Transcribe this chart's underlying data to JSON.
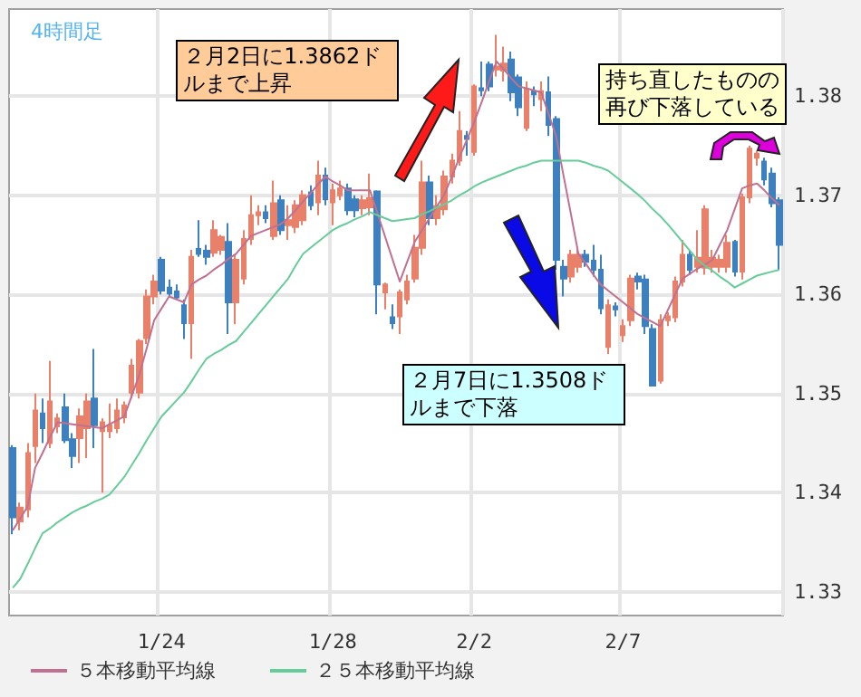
{
  "chart_data": {
    "type": "candlestick",
    "title": "4時間足",
    "categories": [
      null,
      null,
      null,
      null,
      null,
      null,
      null,
      null,
      null,
      null,
      null,
      null,
      null,
      null,
      null,
      null,
      null,
      null,
      null,
      null,
      "1/24",
      null,
      null,
      null,
      null,
      null,
      null,
      null,
      null,
      null,
      null,
      null,
      null,
      null,
      null,
      null,
      null,
      null,
      null,
      null,
      null,
      null,
      null,
      "1/28",
      null,
      null,
      null,
      null,
      null,
      null,
      null,
      null,
      null,
      null,
      null,
      null,
      null,
      null,
      null,
      null,
      null,
      null,
      "2/2",
      null,
      null,
      null,
      null,
      null,
      null,
      null,
      null,
      null,
      null,
      null,
      null,
      null,
      null,
      null,
      null,
      null,
      null,
      null,
      "2/7",
      null,
      null,
      null,
      null,
      null,
      null,
      null,
      null,
      null,
      null,
      null,
      null,
      null,
      null,
      null,
      null,
      null,
      null,
      null,
      null,
      null
    ],
    "ohlc": [
      [
        1.3445,
        1.3448,
        1.3358,
        1.3375
      ],
      [
        1.3371,
        1.339,
        1.3362,
        1.3385
      ],
      [
        1.3383,
        1.345,
        1.3375,
        1.344
      ],
      [
        1.3447,
        1.35,
        1.343,
        1.3483
      ],
      [
        1.348,
        1.3495,
        1.345,
        1.3465
      ],
      [
        1.345,
        1.3533,
        1.3445,
        1.3492
      ],
      [
        1.3467,
        1.348,
        1.346,
        1.3475
      ],
      [
        1.3486,
        1.35,
        1.345,
        1.3453
      ],
      [
        1.3454,
        1.346,
        1.3425,
        1.3437
      ],
      [
        1.3455,
        1.3485,
        1.343,
        1.3477
      ],
      [
        1.3465,
        1.35,
        1.3435,
        1.3492
      ],
      [
        1.3495,
        1.3545,
        1.3445,
        1.3468
      ],
      [
        1.3462,
        1.3475,
        1.34,
        1.3471
      ],
      [
        1.3462,
        1.349,
        1.3455,
        1.3468
      ],
      [
        1.3465,
        1.3495,
        1.346,
        1.3483
      ],
      [
        1.3476,
        1.3492,
        1.347,
        1.3488
      ],
      [
        1.3501,
        1.3535,
        1.3495,
        1.3528
      ],
      [
        1.3501,
        1.3555,
        1.3495,
        1.3553
      ],
      [
        1.3556,
        1.3605,
        1.355,
        1.3598
      ],
      [
        1.3598,
        1.362,
        1.359,
        1.3613
      ],
      [
        1.3635,
        1.3638,
        1.36,
        1.3604
      ],
      [
        1.3607,
        1.3615,
        1.3598,
        1.3601
      ],
      [
        1.3603,
        1.361,
        1.3595,
        1.3597
      ],
      [
        1.3589,
        1.3595,
        1.3555,
        1.3571
      ],
      [
        1.3571,
        1.3645,
        1.3535,
        1.3638
      ],
      [
        1.3646,
        1.3675,
        1.3638,
        1.3641
      ],
      [
        1.3644,
        1.365,
        1.363,
        1.3638
      ],
      [
        1.3642,
        1.3675,
        1.3638,
        1.3665
      ],
      [
        1.3645,
        1.366,
        1.364,
        1.3658
      ],
      [
        1.3653,
        1.3672,
        1.356,
        1.3592
      ],
      [
        1.3592,
        1.364,
        1.357,
        1.3635
      ],
      [
        1.3616,
        1.3665,
        1.361,
        1.3656
      ],
      [
        1.3656,
        1.37,
        1.365,
        1.368
      ],
      [
        1.368,
        1.369,
        1.367,
        1.3683
      ],
      [
        1.3683,
        1.369,
        1.3672,
        1.3677
      ],
      [
        1.3659,
        1.3715,
        1.3655,
        1.3692
      ],
      [
        1.3695,
        1.37,
        1.366,
        1.3665
      ],
      [
        1.367,
        1.369,
        1.3655,
        1.3675
      ],
      [
        1.3668,
        1.3695,
        1.3662,
        1.369
      ],
      [
        1.3675,
        1.3705,
        1.367,
        1.37
      ],
      [
        1.3703,
        1.371,
        1.3685,
        1.369
      ],
      [
        1.3693,
        1.3735,
        1.368,
        1.372
      ],
      [
        1.372,
        1.3728,
        1.369,
        1.3696
      ],
      [
        1.3693,
        1.3712,
        1.367,
        1.3705
      ],
      [
        1.37,
        1.3715,
        1.3695,
        1.3707
      ],
      [
        1.3707,
        1.3712,
        1.368,
        1.3685
      ],
      [
        1.3696,
        1.37,
        1.3678,
        1.3685
      ],
      [
        1.3687,
        1.37,
        1.368,
        1.3695
      ],
      [
        1.3688,
        1.3722,
        1.368,
        1.3697
      ],
      [
        1.3704,
        1.3705,
        1.358,
        1.361
      ],
      [
        1.3602,
        1.3612,
        1.3585,
        1.361
      ],
      [
        1.3577,
        1.359,
        1.3565,
        1.3571
      ],
      [
        1.3578,
        1.3605,
        1.356,
        1.3602
      ],
      [
        1.3595,
        1.362,
        1.359,
        1.3613
      ],
      [
        1.3616,
        1.366,
        1.3612,
        1.3647
      ],
      [
        1.3647,
        1.3735,
        1.364,
        1.3713
      ],
      [
        1.3713,
        1.372,
        1.367,
        1.3677
      ],
      [
        1.3677,
        1.37,
        1.367,
        1.3689
      ],
      [
        1.3686,
        1.3725,
        1.368,
        1.3719
      ],
      [
        1.3719,
        1.3742,
        1.3712,
        1.3735
      ],
      [
        1.3735,
        1.3785,
        1.373,
        1.3765
      ],
      [
        1.376,
        1.3765,
        1.374,
        1.3757
      ],
      [
        1.3744,
        1.3812,
        1.374,
        1.381
      ],
      [
        1.3808,
        1.3835,
        1.38,
        1.3806
      ],
      [
        1.3832,
        1.3835,
        1.3805,
        1.381
      ],
      [
        1.3827,
        1.3862,
        1.382,
        1.383
      ],
      [
        1.3826,
        1.385,
        1.3815,
        1.3833
      ],
      [
        1.3837,
        1.3845,
        1.3795,
        1.3804
      ],
      [
        1.3819,
        1.3822,
        1.378,
        1.3789
      ],
      [
        1.3768,
        1.3815,
        1.3765,
        1.3807
      ],
      [
        1.3805,
        1.381,
        1.379,
        1.3802
      ],
      [
        1.3797,
        1.3815,
        1.3785,
        1.3805
      ],
      [
        1.3804,
        1.382,
        1.376,
        1.3771
      ],
      [
        1.3777,
        1.378,
        1.3625,
        1.3635
      ],
      [
        1.3628,
        1.3635,
        1.3598,
        1.3616
      ],
      [
        1.3618,
        1.3645,
        1.3612,
        1.364
      ],
      [
        1.3628,
        1.3648,
        1.3622,
        1.364
      ],
      [
        1.364,
        1.3645,
        1.3628,
        1.3633
      ],
      [
        1.3634,
        1.365,
        1.3618,
        1.3625
      ],
      [
        1.3625,
        1.364,
        1.358,
        1.3586
      ],
      [
        1.3547,
        1.3595,
        1.354,
        1.3589
      ],
      [
        1.3588,
        1.3592,
        1.3578,
        1.3585
      ],
      [
        1.3559,
        1.3575,
        1.3552,
        1.3568
      ],
      [
        1.3574,
        1.362,
        1.3568,
        1.3616
      ],
      [
        1.3618,
        1.3622,
        1.3605,
        1.3613
      ],
      [
        1.3615,
        1.362,
        1.356,
        1.3568
      ],
      [
        1.3565,
        1.357,
        1.3508,
        1.3508
      ],
      [
        1.3513,
        1.358,
        1.351,
        1.3574
      ],
      [
        1.3574,
        1.3582,
        1.3568,
        1.3578
      ],
      [
        1.3577,
        1.3618,
        1.3572,
        1.3613
      ],
      [
        1.3613,
        1.3655,
        1.3608,
        1.364
      ],
      [
        1.364,
        1.3645,
        1.362,
        1.3625
      ],
      [
        1.3628,
        1.3665,
        1.3622,
        1.3637
      ],
      [
        1.3627,
        1.369,
        1.362,
        1.3686
      ],
      [
        1.3628,
        1.3645,
        1.3622,
        1.3637
      ],
      [
        1.3628,
        1.364,
        1.3622,
        1.3635
      ],
      [
        1.3628,
        1.366,
        1.3622,
        1.3652
      ],
      [
        1.3653,
        1.3655,
        1.3618,
        1.3623
      ],
      [
        1.3623,
        1.3702,
        1.3615,
        1.3698
      ],
      [
        1.3698,
        1.375,
        1.3692,
        1.3747
      ],
      [
        1.3738,
        1.3745,
        1.373,
        1.3742
      ],
      [
        1.3734,
        1.3738,
        1.371,
        1.3716
      ],
      [
        1.3722,
        1.3728,
        1.3688,
        1.3692
      ],
      [
        1.3695,
        1.3698,
        1.3625,
        1.365
      ]
    ],
    "colors": [
      "#3c80c0",
      "#e8806a",
      "#e8806a",
      "#e8806a",
      "#3c80c0",
      "#e8806a",
      "#e8806a",
      "#3c80c0",
      "#3c80c0",
      "#e8806a",
      "#e8806a",
      "#3c80c0",
      "#e8806a",
      "#e8806a",
      "#e8806a",
      "#e8806a",
      "#e8806a",
      "#e8806a",
      "#e8806a",
      "#e8806a",
      "#3c80c0",
      "#3c80c0",
      "#3c80c0",
      "#3c80c0",
      "#e8806a",
      "#3c80c0",
      "#3c80c0",
      "#e8806a",
      "#e8806a",
      "#3c80c0",
      "#e8806a",
      "#e8806a",
      "#e8806a",
      "#e8806a",
      "#3c80c0",
      "#e8806a",
      "#3c80c0",
      "#e8806a",
      "#e8806a",
      "#e8806a",
      "#3c80c0",
      "#e8806a",
      "#3c80c0",
      "#e8806a",
      "#e8806a",
      "#3c80c0",
      "#3c80c0",
      "#e8806a",
      "#e8806a",
      "#3c80c0",
      "#e8806a",
      "#3c80c0",
      "#e8806a",
      "#e8806a",
      "#e8806a",
      "#e8806a",
      "#3c80c0",
      "#e8806a",
      "#e8806a",
      "#e8806a",
      "#e8806a",
      "#3c80c0",
      "#e8806a",
      "#3c80c0",
      "#3c80c0",
      "#e8806a",
      "#e8806a",
      "#3c80c0",
      "#3c80c0",
      "#e8806a",
      "#3c80c0",
      "#e8806a",
      "#3c80c0",
      "#3c80c0",
      "#3c80c0",
      "#e8806a",
      "#e8806a",
      "#3c80c0",
      "#3c80c0",
      "#3c80c0",
      "#e8806a",
      "#3c80c0",
      "#e8806a",
      "#e8806a",
      "#3c80c0",
      "#3c80c0",
      "#3c80c0",
      "#e8806a",
      "#e8806a",
      "#e8806a",
      "#e8806a",
      "#3c80c0",
      "#e8806a",
      "#e8806a",
      "#e8806a",
      "#e8806a",
      "#e8806a",
      "#3c80c0",
      "#e8806a",
      "#e8806a",
      "#e8806a",
      "#3c80c0",
      "#3c80c0",
      "#3c80c0"
    ],
    "series": [
      {
        "type": "line",
        "name": "５本移動平均線",
        "color": "#c07090",
        "values": [
          1.3362,
          1.3374,
          1.3386,
          1.3425,
          1.344,
          1.3456,
          1.3471,
          1.347,
          1.3469,
          1.3468,
          1.3467,
          1.3466,
          1.3465,
          1.3469,
          1.3473,
          1.3477,
          1.3498,
          1.3519,
          1.3546,
          1.3574,
          1.3586,
          1.3598,
          1.3595,
          1.3592,
          1.361,
          1.3615,
          1.3619,
          1.3625,
          1.363,
          1.3636,
          1.3641,
          1.365,
          1.3659,
          1.3662,
          1.3665,
          1.3668,
          1.3671,
          1.3677,
          1.3685,
          1.3694,
          1.3702,
          1.3711,
          1.3719,
          1.3714,
          1.371,
          1.3705,
          1.3705,
          1.3705,
          1.3705,
          1.3682,
          1.3659,
          1.3636,
          1.3613,
          1.3633,
          1.3653,
          1.3665,
          1.3677,
          1.3689,
          1.3701,
          1.3719,
          1.3738,
          1.3756,
          1.3774,
          1.3794,
          1.3815,
          1.3835,
          1.3827,
          1.3818,
          1.381,
          1.3808,
          1.3806,
          1.3804,
          1.3782,
          1.376,
          1.372,
          1.3681,
          1.3641,
          1.3631,
          1.362,
          1.361,
          1.3604,
          1.3598,
          1.3592,
          1.3586,
          1.358,
          1.3576,
          1.3572,
          1.3568,
          1.3584,
          1.36,
          1.3616,
          1.3621,
          1.3626,
          1.363,
          1.3635,
          1.365,
          1.3665,
          1.3686,
          1.3707,
          1.371,
          1.3712,
          1.3705,
          1.3697,
          1.369
        ]
      },
      {
        "type": "line",
        "name": "２５本移動平均線",
        "color": "#66cc99",
        "values": [
          1.3304,
          1.3313,
          1.3328,
          1.3344,
          1.3359,
          1.3364,
          1.337,
          1.3375,
          1.338,
          1.3384,
          1.3387,
          1.3391,
          1.3394,
          1.3398,
          1.3407,
          1.3416,
          1.3428,
          1.344,
          1.3453,
          1.3465,
          1.3477,
          1.3485,
          1.3493,
          1.3501,
          1.3512,
          1.3524,
          1.3535,
          1.354,
          1.3544,
          1.3549,
          1.3553,
          1.3562,
          1.3571,
          1.358,
          1.3589,
          1.3598,
          1.3607,
          1.3616,
          1.3629,
          1.3641,
          1.3647,
          1.3653,
          1.3659,
          1.3665,
          1.3669,
          1.3672,
          1.3676,
          1.3679,
          1.3683,
          1.368,
          1.3677,
          1.3674,
          1.3675,
          1.3676,
          1.3677,
          1.3681,
          1.3684,
          1.3688,
          1.3691,
          1.3695,
          1.37,
          1.3704,
          1.3709,
          1.3713,
          1.3716,
          1.3719,
          1.3722,
          1.3725,
          1.3728,
          1.373,
          1.3733,
          1.3735,
          1.3735,
          1.3735,
          1.3735,
          1.3735,
          1.3735,
          1.3733,
          1.373,
          1.3728,
          1.3725,
          1.3719,
          1.3713,
          1.3707,
          1.3701,
          1.3694,
          1.3686,
          1.3679,
          1.3671,
          1.3662,
          1.3653,
          1.3644,
          1.3635,
          1.3629,
          1.3624,
          1.3618,
          1.3613,
          1.3607,
          1.3611,
          1.3615,
          1.3619,
          1.3621,
          1.3623,
          1.3625
        ]
      }
    ],
    "ylim": [
      1.3276,
      1.3888
    ],
    "yticks": [
      1.33,
      1.34,
      1.35,
      1.36,
      1.37,
      1.38
    ],
    "grid": true,
    "legend": "bottom left",
    "annotations": [
      "２月2日に1.3862ドルまで上昇",
      "２月7日に1.3508ドルまで下落",
      "持ち直したものの再び下落している"
    ]
  }
}
